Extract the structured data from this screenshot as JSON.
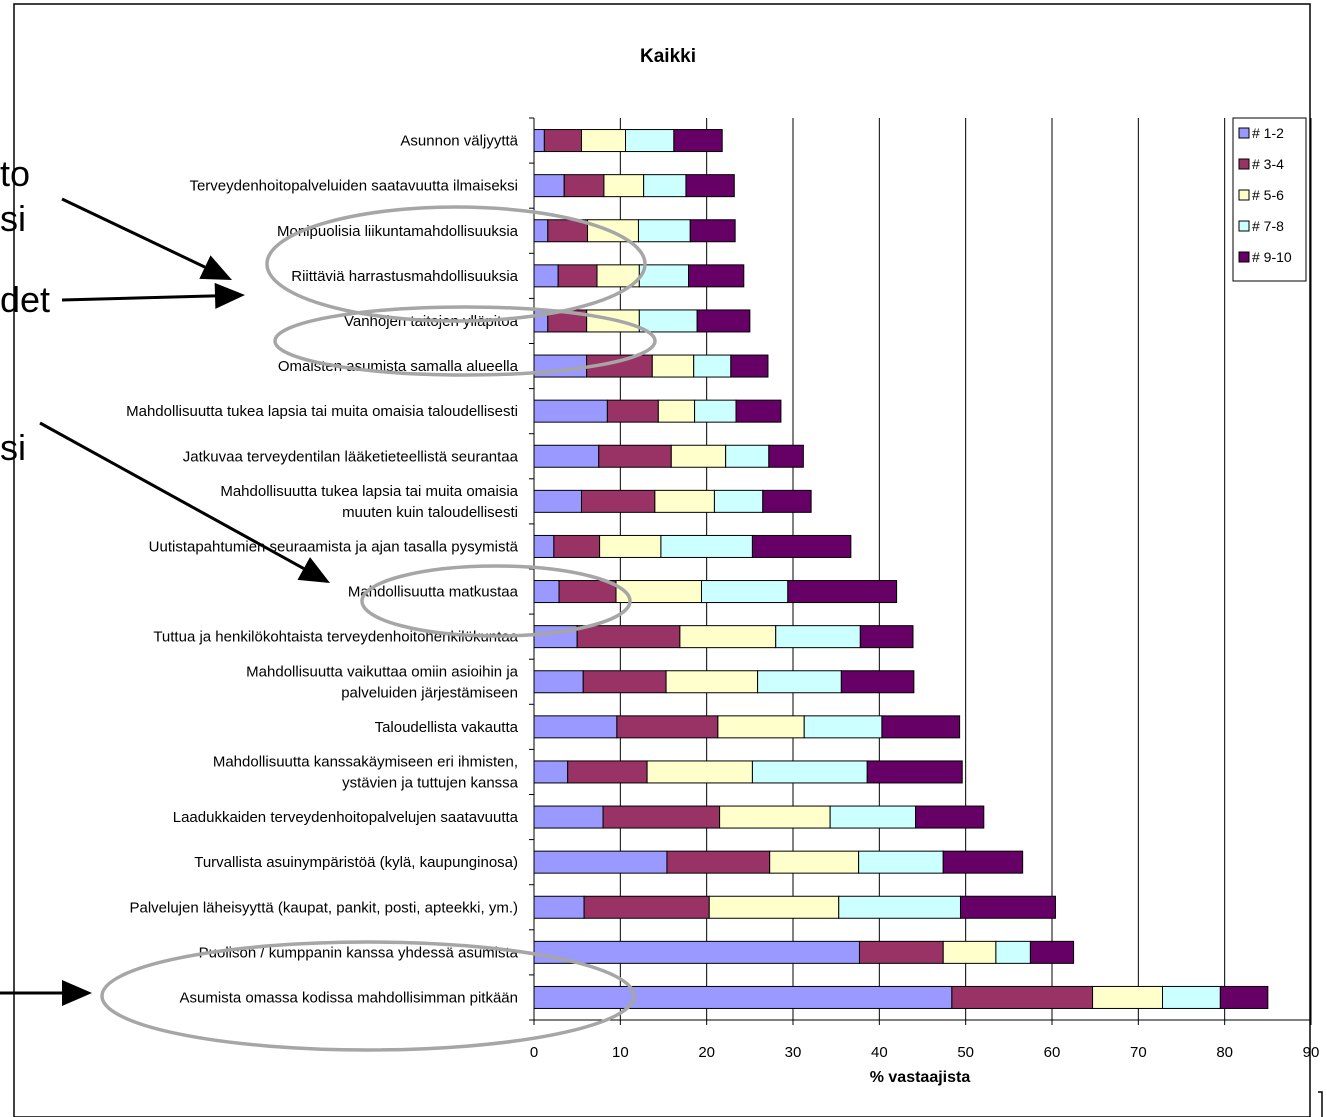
{
  "page": {
    "side_texts": [
      "to",
      "si",
      "det",
      "si"
    ]
  },
  "chart_data": {
    "type": "bar",
    "orientation": "horizontal",
    "stacked": true,
    "title": "Kaikki",
    "xlabel": "% vastaajista",
    "ylabel": "",
    "xlim": [
      0,
      90
    ],
    "x_ticks": [
      0,
      10,
      20,
      30,
      40,
      50,
      60,
      70,
      80,
      90
    ],
    "grid": "vertical",
    "legend_position": "right",
    "colors": {
      "series": [
        "#9999ff",
        "#993366",
        "#ffffcc",
        "#ccffff",
        "#660066"
      ],
      "bar_outline": "#000000",
      "grid": "#000000",
      "annotation_ellipse": "#a6a6a6",
      "arrow": "#000000"
    },
    "categories": [
      [
        "Asunnon väljyyttä"
      ],
      [
        "Terveydenhoitopalveluiden saatavuutta ilmaiseksi"
      ],
      [
        "Monipuolisia liikuntamahdollisuuksia"
      ],
      [
        "Riittäviä harrastusmahdollisuuksia"
      ],
      [
        "Vanhojen taitojen ylläpitoa"
      ],
      [
        "Omaisten asumista samalla alueella"
      ],
      [
        "Mahdollisuutta tukea lapsia tai muita omaisia taloudellisesti"
      ],
      [
        "Jatkuvaa terveydentilan lääketieteellistä seurantaa"
      ],
      [
        "Mahdollisuutta tukea lapsia tai muita omaisia",
        "muuten kuin taloudellisesti"
      ],
      [
        "Uutistapahtumien seuraamista ja ajan tasalla pysymistä"
      ],
      [
        "Mahdollisuutta matkustaa"
      ],
      [
        "Tuttua ja henkilökohtaista terveydenhoitohenkilökuntaa"
      ],
      [
        "Mahdollisuutta vaikuttaa omiin asioihin ja",
        "palveluiden järjestämiseen"
      ],
      [
        "Taloudellista vakautta"
      ],
      [
        "Mahdollisuutta kanssakäymiseen eri ihmisten,",
        "ystävien ja tuttujen kanssa"
      ],
      [
        "Laadukkaiden terveydenhoitopalvelujen saatavuutta"
      ],
      [
        "Turvallista asuinympäristöä (kylä, kaupunginosa)"
      ],
      [
        "Palvelujen läheisyyttä (kaupat, pankit, posti, apteekki, ym.)"
      ],
      [
        "Puolison / kumppanin kanssa yhdessä asumista"
      ],
      [
        "Asumista omassa kodissa mahdollisimman pitkään"
      ]
    ],
    "series": [
      {
        "name": "# 1-2",
        "values": [
          1.2,
          3.5,
          1.6,
          2.8,
          1.6,
          6.1,
          8.5,
          7.5,
          5.5,
          2.3,
          2.9,
          5.0,
          5.7,
          9.6,
          3.9,
          8.0,
          15.4,
          5.8,
          37.7,
          48.4
        ]
      },
      {
        "name": "# 3-4",
        "values": [
          4.3,
          4.6,
          4.6,
          4.5,
          4.5,
          7.6,
          5.9,
          8.4,
          8.5,
          5.3,
          6.6,
          11.9,
          9.6,
          11.7,
          9.2,
          13.5,
          11.9,
          14.5,
          9.7,
          16.3
        ]
      },
      {
        "name": "# 5-6",
        "values": [
          5.1,
          4.6,
          5.9,
          4.9,
          6.1,
          4.8,
          4.2,
          6.3,
          6.9,
          7.1,
          9.9,
          11.1,
          10.6,
          10.0,
          12.2,
          12.8,
          10.3,
          15.0,
          6.1,
          8.1
        ]
      },
      {
        "name": "# 7-8",
        "values": [
          5.6,
          4.9,
          6.0,
          5.7,
          6.7,
          4.3,
          4.8,
          5.0,
          5.6,
          10.6,
          10.0,
          9.8,
          9.7,
          9.0,
          13.3,
          9.9,
          9.8,
          14.1,
          4.0,
          6.7
        ]
      },
      {
        "name": "# 9-10",
        "values": [
          5.6,
          5.6,
          5.2,
          6.4,
          6.1,
          4.3,
          5.2,
          4.0,
          5.6,
          11.4,
          12.6,
          6.1,
          8.4,
          9.0,
          11.0,
          7.9,
          9.2,
          11.0,
          5.0,
          5.5
        ]
      }
    ]
  }
}
